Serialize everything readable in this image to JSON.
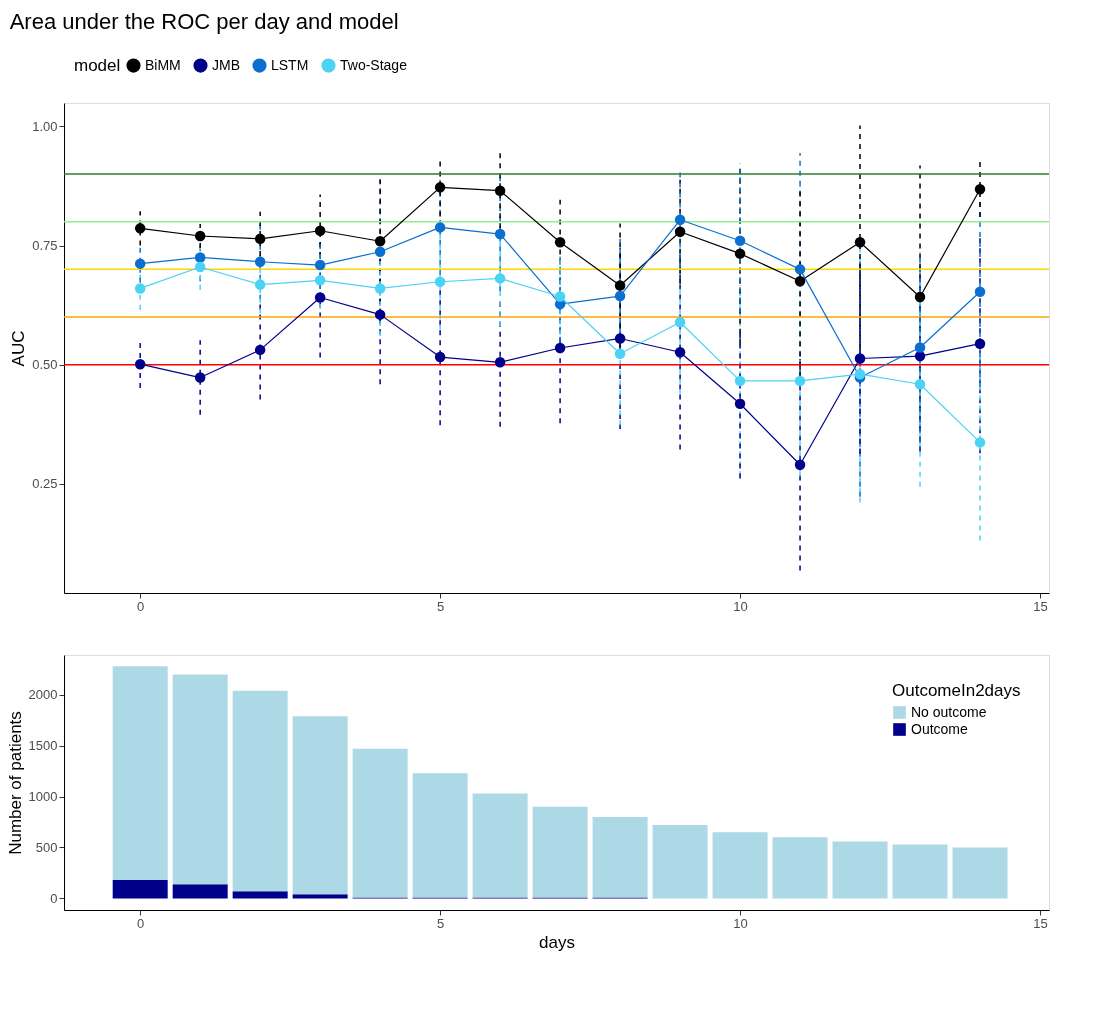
{
  "chart_data": [
    {
      "type": "line",
      "title": "Area under the ROC per day and model",
      "ylabel": "AUC",
      "legend_title": "model",
      "legend": "top",
      "grid": false,
      "marker": "circle",
      "line_style": "solid",
      "x": [
        0,
        1,
        2,
        3,
        4,
        5,
        6,
        7,
        8,
        9,
        10,
        11,
        12,
        13,
        14
      ],
      "xlim": [
        -1.27,
        15.15
      ],
      "xticks": [
        0,
        5,
        10,
        15
      ],
      "ylim": [
        0.021,
        1.049
      ],
      "yticks": [
        0.25,
        {
          "value": 0.5,
          "label": "0.50"
        },
        0.75,
        {
          "value": 1.0,
          "label": "1.00"
        }
      ],
      "ref_lines": [
        {
          "axis": "y",
          "value": 0.9,
          "color": "#2e7d32"
        },
        {
          "axis": "y",
          "value": 0.8,
          "color": "#90ee90"
        },
        {
          "axis": "y",
          "value": 0.7,
          "color": "#ffd700"
        },
        {
          "axis": "y",
          "value": 0.6,
          "color": "#ffa500"
        },
        {
          "axis": "y",
          "value": 0.5,
          "color": "#ff0000"
        }
      ],
      "series": [
        {
          "name": "BiMM",
          "color": "#000000",
          "values": [
            0.786,
            0.77,
            0.764,
            0.781,
            0.759,
            0.872,
            0.865,
            0.757,
            0.666,
            0.779,
            0.733,
            0.675,
            0.757,
            0.642,
            0.868
          ],
          "errors": [
            0.036,
            0.025,
            0.057,
            0.076,
            0.132,
            0.061,
            0.079,
            0.089,
            0.13,
            0.109,
            0.189,
            0.2,
            0.245,
            0.276,
            0.058
          ]
        },
        {
          "name": "JMB",
          "color": "#00008b",
          "values": [
            0.501,
            0.473,
            0.531,
            0.641,
            0.605,
            0.516,
            0.505,
            0.535,
            0.555,
            0.526,
            0.418,
            0.29,
            0.513,
            0.518,
            0.544
          ],
          "errors": [
            0.05,
            0.078,
            0.104,
            0.126,
            0.146,
            0.143,
            0.135,
            0.158,
            0.19,
            0.204,
            0.157,
            0.222,
            0.2,
            0.2,
            0.23
          ]
        },
        {
          "name": "LSTM",
          "color": "#0a6fd0",
          "values": [
            0.712,
            0.725,
            0.716,
            0.709,
            0.737,
            0.788,
            0.774,
            0.627,
            0.644,
            0.804,
            0.76,
            0.7,
            0.473,
            0.536,
            0.653
          ],
          "errors": [
            0.04,
            0.05,
            0.08,
            0.05,
            0.15,
            0.1,
            0.12,
            0.1,
            0.12,
            0.1,
            0.15,
            0.244,
            0.25,
            0.2,
            0.2
          ]
        },
        {
          "name": "Two-Stage",
          "color": "#4cd2f5",
          "values": [
            0.66,
            0.705,
            0.668,
            0.677,
            0.66,
            0.674,
            0.681,
            0.643,
            0.523,
            0.589,
            0.466,
            0.466,
            0.48,
            0.459,
            0.337
          ],
          "errors": [
            0.045,
            0.048,
            0.06,
            0.06,
            0.1,
            0.1,
            0.1,
            0.08,
            0.15,
            0.15,
            0.2,
            0.2,
            0.269,
            0.215,
            0.206
          ]
        }
      ]
    },
    {
      "type": "bar",
      "stacked": true,
      "xlabel": "days",
      "ylabel": "Number of patients",
      "legend_title": "OutcomeIn2days",
      "legend": "top right",
      "grid": false,
      "x": [
        0,
        1,
        2,
        3,
        4,
        5,
        6,
        7,
        8,
        9,
        10,
        11,
        12,
        13,
        14
      ],
      "xlim": [
        -1.27,
        15.15
      ],
      "xticks": [
        0,
        5,
        10,
        15
      ],
      "ylim": [
        -114,
        2391
      ],
      "yticks": [
        0,
        500,
        1000,
        1500,
        2000
      ],
      "series": [
        {
          "name": "Outcome",
          "color": "#00008b",
          "values": [
            180,
            140,
            70,
            40,
            10,
            10,
            10,
            10,
            10,
            0,
            0,
            0,
            0,
            0,
            0
          ]
        },
        {
          "name": "No outcome",
          "color": "#add8e6",
          "values": [
            2100,
            2060,
            1970,
            1750,
            1460,
            1220,
            1020,
            890,
            790,
            720,
            650,
            600,
            560,
            530,
            500
          ]
        }
      ]
    }
  ]
}
